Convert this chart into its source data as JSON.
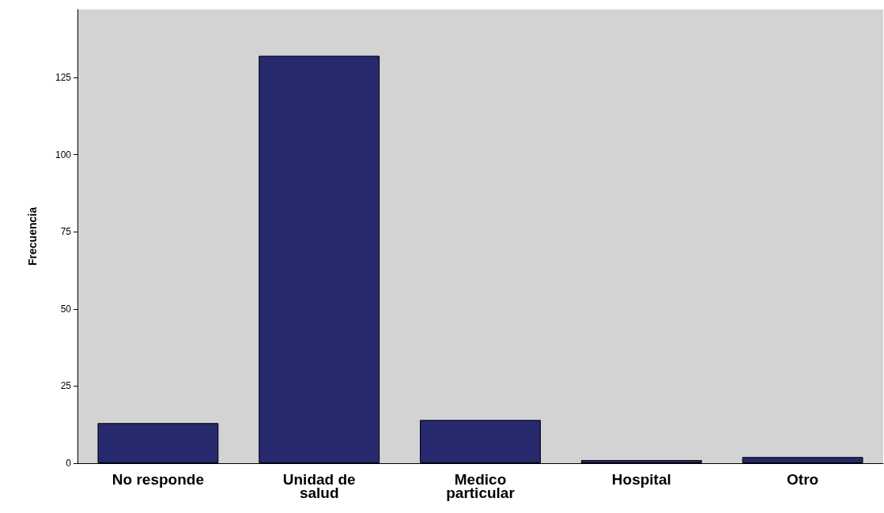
{
  "chart_data": {
    "type": "bar",
    "ylabel": "Frecuencia",
    "categories": [
      "No responde",
      "Unidad de\nsalud",
      "Medico\nparticular",
      "Hospital",
      "Otro"
    ],
    "values": [
      13,
      132,
      14,
      1,
      2
    ],
    "color": "#26296e",
    "ylim": [
      0,
      147
    ],
    "yticks": [
      0,
      25,
      50,
      75,
      100,
      125
    ],
    "grid": false
  }
}
